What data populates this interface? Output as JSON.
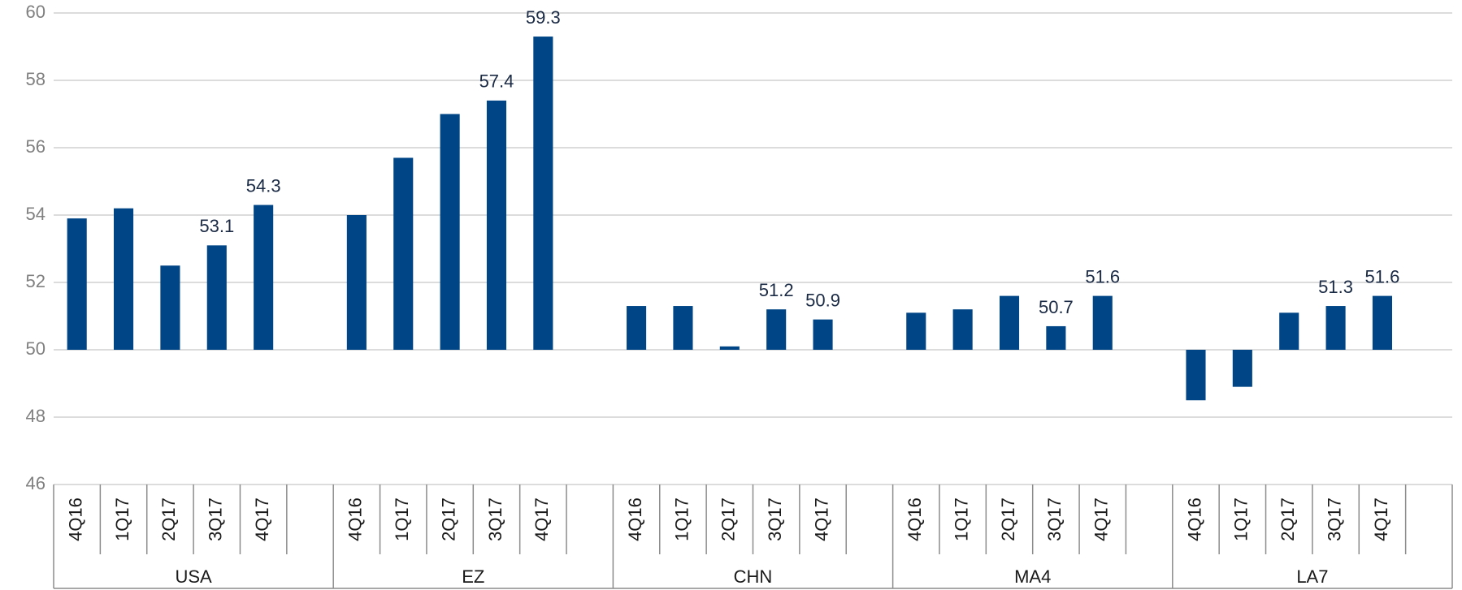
{
  "chart_data": {
    "type": "bar",
    "categories": [
      "4Q16",
      "1Q17",
      "2Q17",
      "3Q17",
      "4Q17",
      null,
      "4Q16",
      "1Q17",
      "2Q17",
      "3Q17",
      "4Q17",
      null,
      "4Q16",
      "1Q17",
      "2Q17",
      "3Q17",
      "4Q17",
      null,
      "4Q16",
      "1Q17",
      "2Q17",
      "3Q17",
      "4Q17",
      null,
      "4Q16",
      "1Q17",
      "2Q17",
      "3Q17",
      "4Q17"
    ],
    "groups": [
      "USA",
      "EZ",
      "CHN",
      "MA4",
      "LA7"
    ],
    "values": [
      53.9,
      54.2,
      52.5,
      53.1,
      54.3,
      null,
      54.0,
      55.7,
      57.0,
      57.4,
      59.3,
      null,
      51.3,
      51.3,
      50.1,
      51.2,
      50.9,
      null,
      51.1,
      51.2,
      51.6,
      50.7,
      51.6,
      null,
      48.5,
      48.9,
      51.1,
      51.3,
      51.6
    ],
    "show_value_label": [
      false,
      false,
      false,
      true,
      true,
      false,
      false,
      false,
      false,
      true,
      true,
      false,
      false,
      false,
      false,
      true,
      true,
      false,
      false,
      false,
      false,
      true,
      true,
      false,
      false,
      false,
      false,
      true,
      true
    ],
    "color": "#004586",
    "baseline": 50,
    "ylim": [
      46,
      60
    ],
    "yticks": [
      46,
      48,
      50,
      52,
      54,
      56,
      58,
      60
    ],
    "grid": true
  }
}
